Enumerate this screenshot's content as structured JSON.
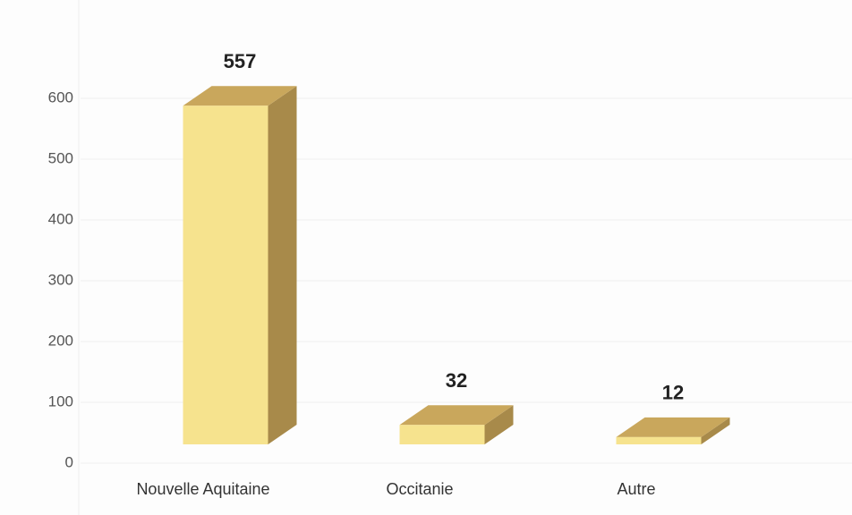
{
  "chart_data": {
    "type": "bar3d",
    "categories": [
      "Nouvelle Aquitaine",
      "Occitanie",
      "Autre"
    ],
    "values": [
      557,
      32,
      12
    ],
    "color": "#f6e38e",
    "ylim": [
      0,
      600
    ],
    "yticks": [
      0,
      100,
      200,
      300,
      400,
      500,
      600
    ],
    "grid": true
  }
}
